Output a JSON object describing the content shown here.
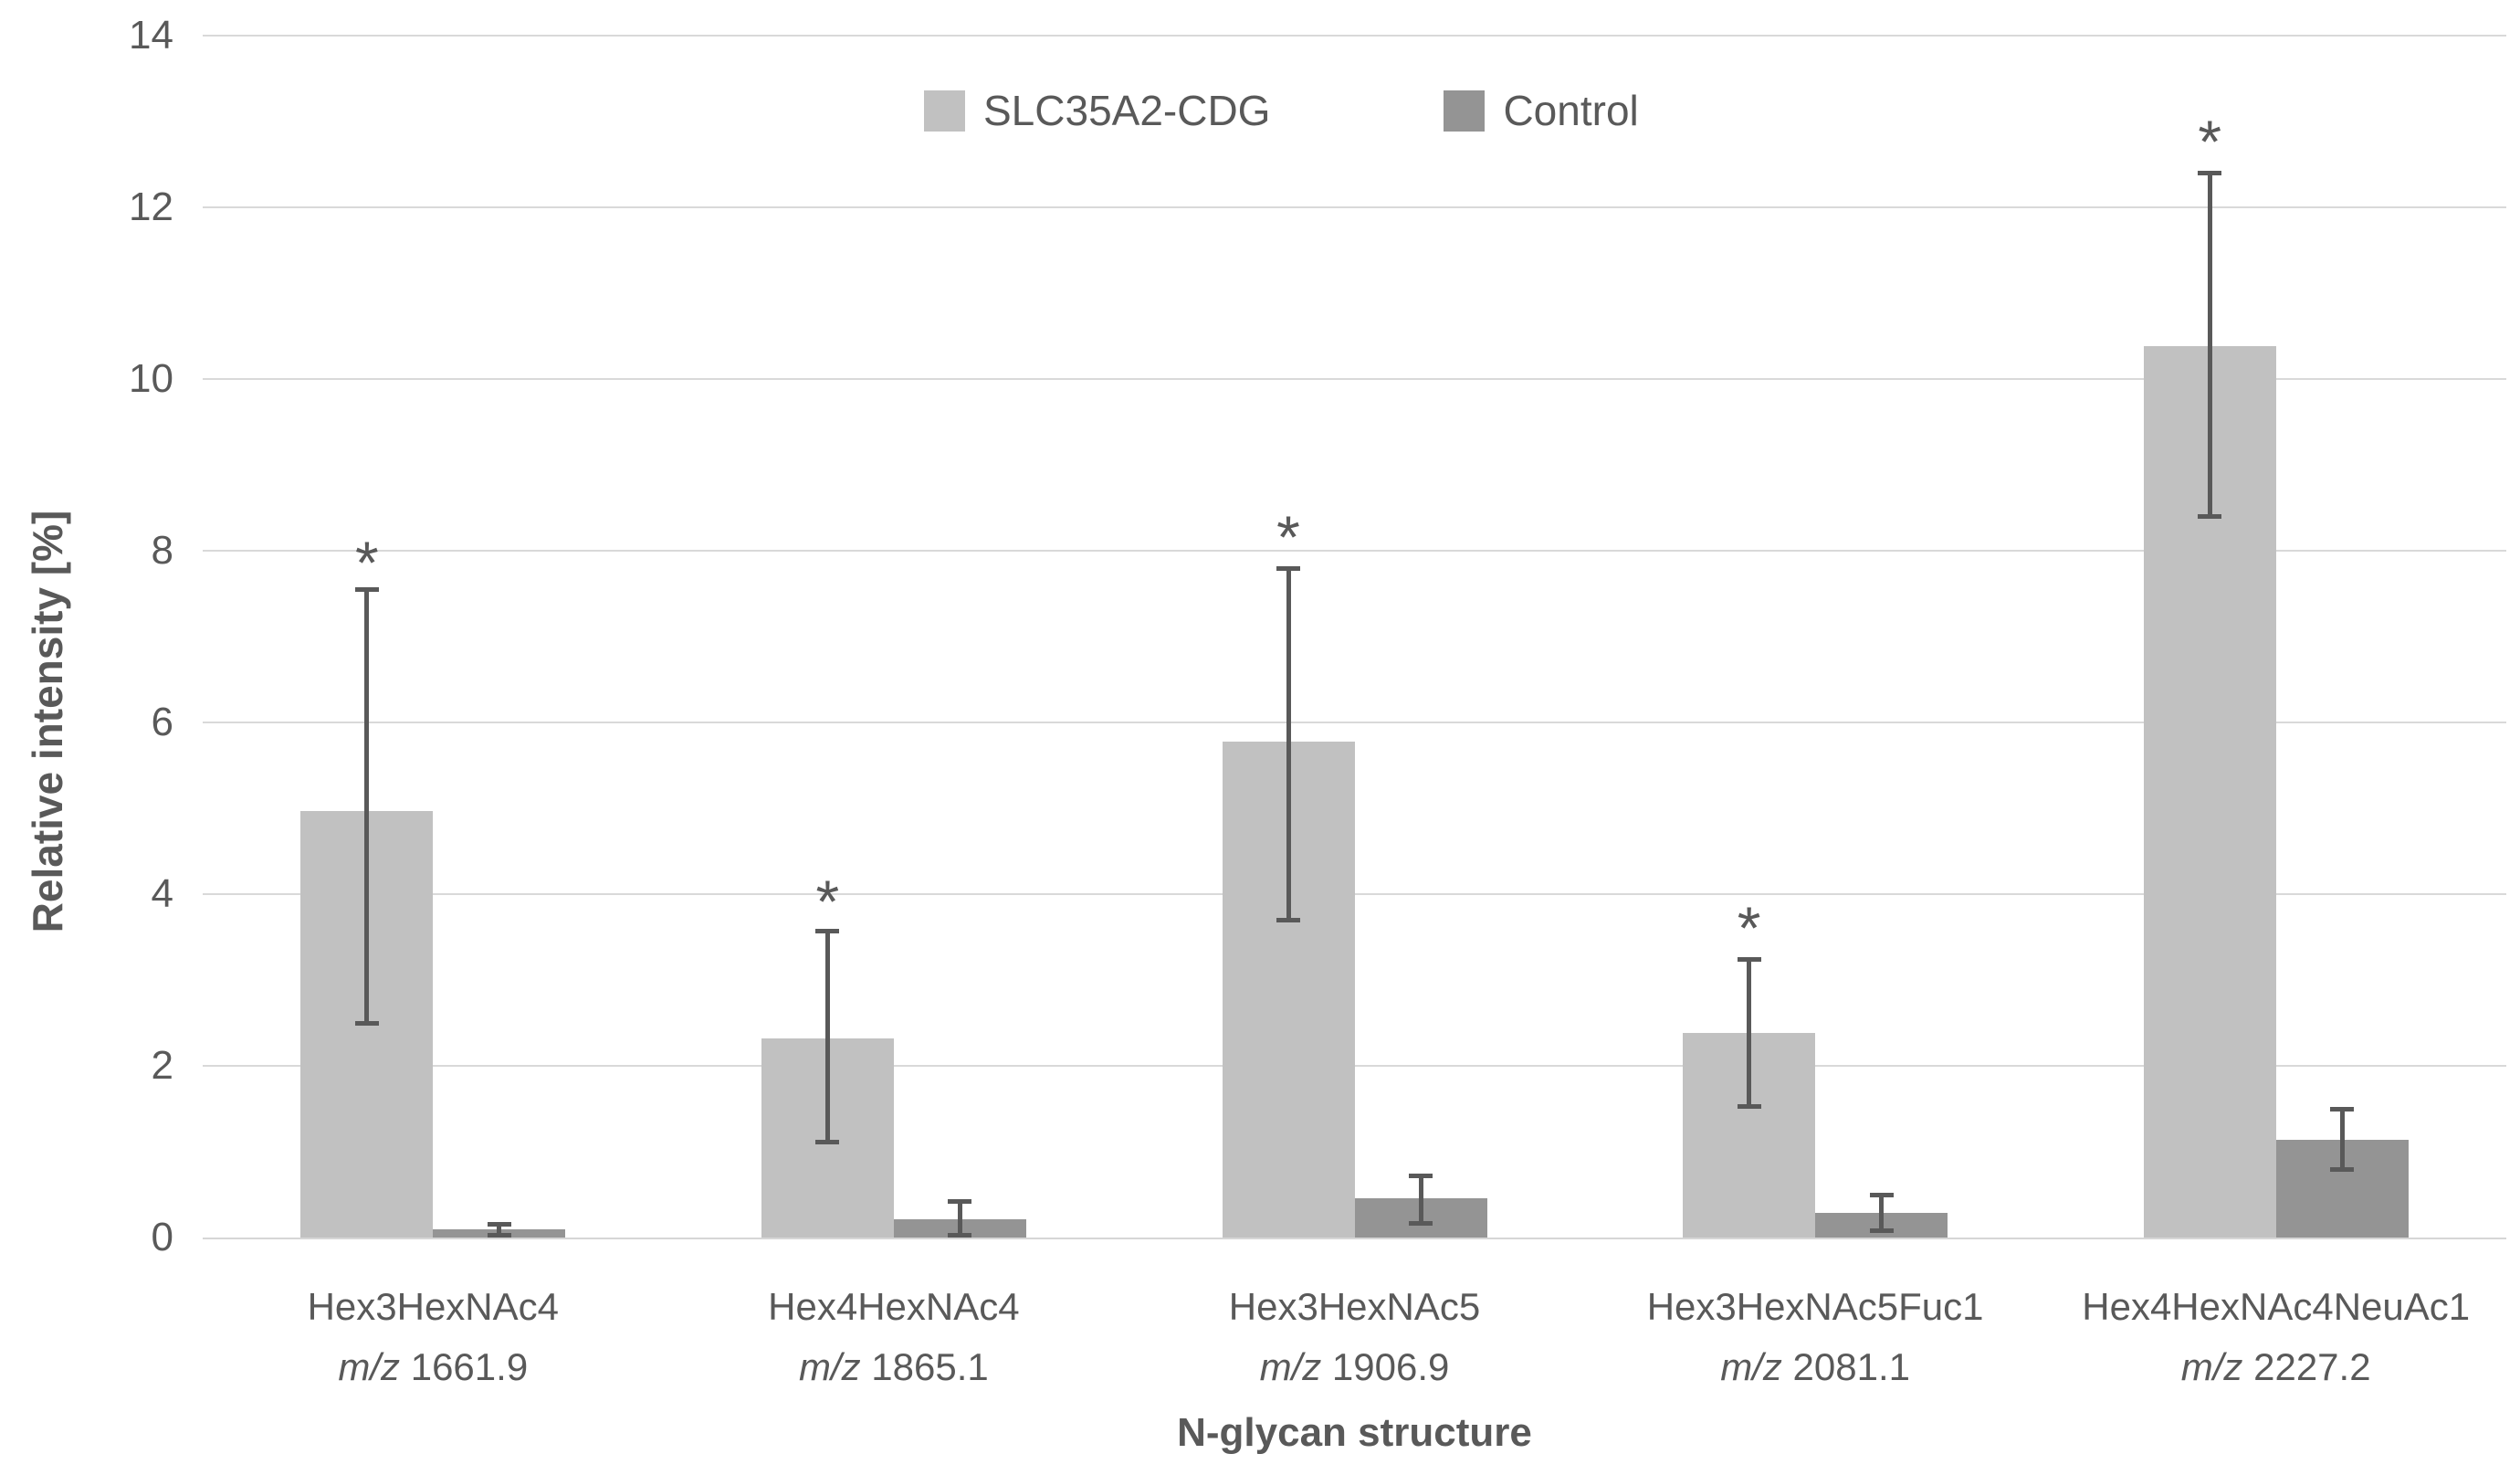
{
  "axes": {
    "y_title": "Relative intensity [%]",
    "x_title": "N-glycan structure"
  },
  "legend": {
    "items": [
      {
        "label": "SLC35A2-CDG",
        "color": "#c1c1c1"
      },
      {
        "label": "Control",
        "color": "#949494"
      }
    ]
  },
  "chart_data": {
    "type": "bar",
    "title": "",
    "xlabel": "N-glycan structure",
    "ylabel": "Relative intensity [%]",
    "ylim": [
      0,
      14
    ],
    "yticks": [
      0,
      2,
      4,
      6,
      8,
      10,
      12,
      14
    ],
    "grid": "horizontal",
    "legend_position": "top-center",
    "categories": [
      {
        "name": "Hex3HexNAc4",
        "mz_prefix": "m/z",
        "mz": "1661.9"
      },
      {
        "name": "Hex4HexNAc4",
        "mz_prefix": "m/z",
        "mz": "1865.1"
      },
      {
        "name": "Hex3HexNAc5",
        "mz_prefix": "m/z",
        "mz": "1906.9"
      },
      {
        "name": "Hex3HexNAc5Fuc1",
        "mz_prefix": "m/z",
        "mz": "2081.1"
      },
      {
        "name": "Hex4HexNAc4NeuAc1",
        "mz_prefix": "m/z",
        "mz": "2227.2"
      }
    ],
    "series": [
      {
        "name": "SLC35A2-CDG",
        "color": "#c1c1c1",
        "values": [
          4.97,
          2.32,
          5.78,
          2.38,
          10.38
        ],
        "error_low": [
          2.5,
          1.12,
          3.7,
          1.53,
          8.4
        ],
        "error_high": [
          7.55,
          3.57,
          7.8,
          3.25,
          12.4
        ]
      },
      {
        "name": "Control",
        "color": "#949494",
        "values": [
          0.1,
          0.21,
          0.46,
          0.29,
          1.14
        ],
        "error_low": [
          0.03,
          0.03,
          0.17,
          0.08,
          0.8
        ],
        "error_high": [
          0.16,
          0.43,
          0.72,
          0.5,
          1.5
        ]
      }
    ],
    "significance": {
      "symbol": "*",
      "applies_to_series": "SLC35A2-CDG",
      "marker_y": [
        8.0,
        4.05,
        8.3,
        3.75,
        12.9
      ]
    },
    "error_bar_color": "#595959",
    "gridline_color": "#d9d9d9",
    "text_color": "#595959"
  }
}
